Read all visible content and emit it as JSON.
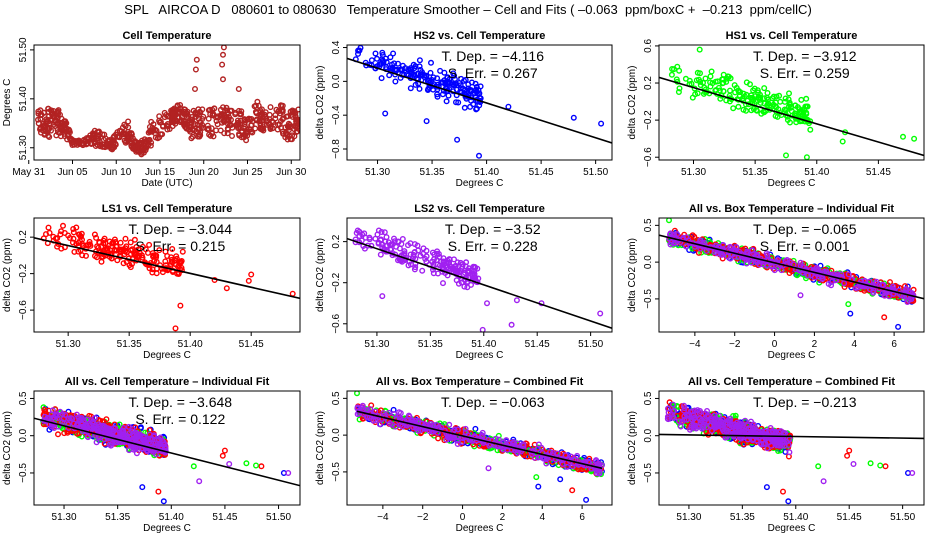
{
  "figure": {
    "title": "SPL   AIRCOA D   080601 to 080630   Temperature Smoother – Cell and Fits ( –0.063  ppm/boxC +  –0.213  ppm/cellC)",
    "colors": {
      "HS2": "#0000ff",
      "HS1": "#00ff00",
      "LS1": "#ff0000",
      "LS2": "#a020f0",
      "cell": "#b22222",
      "fit": "#000000"
    }
  },
  "chart_data": [
    {
      "id": "cell-temperature",
      "type": "scatter",
      "title": "Cell Temperature",
      "xlabel": "Date (UTC)",
      "ylabel": "Degrees C",
      "xlim": [
        0.6,
        31.0
      ],
      "ylim": [
        51.275,
        51.51
      ],
      "xticks": [
        0,
        5,
        10,
        15,
        20,
        25,
        30
      ],
      "xticklabels": [
        "May 31",
        "Jun 05",
        "Jun 10",
        "Jun 15",
        "Jun 20",
        "Jun 25",
        "Jun 30"
      ],
      "yticks": [
        51.3,
        51.4,
        51.5
      ],
      "yticklabels": [
        "51.30",
        "51.40",
        "51.50"
      ],
      "series": [
        {
          "name": "cell",
          "color": "#b22222",
          "profile_x": [
            1.0,
            1.5,
            2.0,
            2.5,
            3.0,
            3.5,
            4.0,
            4.5,
            5.0,
            6.0,
            7.0,
            7.5,
            8.0,
            9.0,
            9.5,
            10.0,
            11.0,
            11.5,
            12.0,
            12.5,
            13.0,
            13.5,
            14.0,
            15.0,
            16.0,
            16.5,
            17.0,
            17.5,
            18.0,
            18.5,
            19.0,
            19.5,
            20.0,
            21.0,
            22.0,
            22.5,
            23.0,
            24.0,
            24.5,
            25.0,
            26.0,
            26.5,
            27.0,
            28.0,
            29.0,
            29.5,
            30.0,
            30.5,
            31.0
          ],
          "profile_center": [
            51.36,
            51.345,
            51.355,
            51.35,
            51.355,
            51.35,
            51.34,
            51.33,
            51.31,
            51.31,
            51.315,
            51.32,
            51.32,
            51.31,
            51.305,
            51.32,
            51.33,
            51.335,
            51.305,
            51.3,
            51.3,
            51.305,
            51.33,
            51.345,
            51.355,
            51.365,
            51.37,
            51.37,
            51.36,
            51.345,
            51.355,
            51.35,
            51.355,
            51.35,
            51.36,
            51.355,
            51.355,
            51.35,
            51.345,
            51.335,
            51.37,
            51.36,
            51.355,
            51.365,
            51.36,
            51.345,
            51.345,
            51.35,
            51.36
          ],
          "profile_spread": [
            0.02,
            0.03,
            0.03,
            0.03,
            0.03,
            0.025,
            0.02,
            0.015,
            0.005,
            0.005,
            0.01,
            0.015,
            0.02,
            0.01,
            0.01,
            0.015,
            0.02,
            0.025,
            0.01,
            0.012,
            0.015,
            0.015,
            0.025,
            0.025,
            0.02,
            0.02,
            0.02,
            0.02,
            0.02,
            0.03,
            0.03,
            0.03,
            0.03,
            0.03,
            0.03,
            0.03,
            0.03,
            0.03,
            0.03,
            0.025,
            0.03,
            0.025,
            0.02,
            0.025,
            0.03,
            0.03,
            0.03,
            0.03,
            0.02
          ],
          "outliers": [
            [
              19.0,
              51.42
            ],
            [
              19.1,
              51.46
            ],
            [
              19.2,
              51.48
            ],
            [
              22.2,
              51.44
            ],
            [
              22.1,
              51.47
            ],
            [
              22.2,
              51.49
            ],
            [
              22.3,
              51.505
            ],
            [
              24.0,
              51.42
            ]
          ]
        }
      ]
    },
    {
      "id": "hs2-vs-cell",
      "type": "scatter",
      "title": "HS2 vs. Cell Temperature",
      "xlabel": "Degrees C",
      "ylabel": "delta CO2 (ppm)",
      "xlim": [
        51.272,
        51.515
      ],
      "ylim": [
        -0.93,
        0.43
      ],
      "xticks": [
        51.3,
        51.35,
        51.4,
        51.45,
        51.5
      ],
      "xticklabels": [
        "51.30",
        "51.35",
        "51.40",
        "51.45",
        "51.50"
      ],
      "yticks": [
        -0.8,
        -0.4,
        0.0,
        0.4
      ],
      "yticklabels": [
        "−0.8",
        "−0.4",
        "0.0",
        "0.4"
      ],
      "annotation": {
        "tdep_label": "T. Dep. =",
        "tdep": "−4.116",
        "serr_label": "S. Err. =",
        "serr": "0.267"
      },
      "fit": {
        "slope": -4.116,
        "x0": 51.35,
        "y0": -0.05
      },
      "series": [
        {
          "name": "HS2",
          "color": "#0000ff",
          "cloud": {
            "xmin": 51.28,
            "xmax": 51.395,
            "spread": 0.17
          },
          "outliers": [
            [
              51.48,
              -0.43
            ],
            [
              51.505,
              -0.5
            ],
            [
              51.42,
              -0.3
            ],
            [
              51.393,
              -0.88
            ],
            [
              51.373,
              -0.69
            ],
            [
              51.307,
              -0.38
            ],
            [
              51.345,
              -0.47
            ]
          ]
        }
      ]
    },
    {
      "id": "hs1-vs-cell",
      "type": "scatter",
      "title": "HS1 vs. Cell Temperature",
      "xlabel": "Degrees C",
      "ylabel": "delta CO2 (ppm)",
      "xlim": [
        51.272,
        51.487
      ],
      "ylim": [
        -0.63,
        0.61
      ],
      "xticks": [
        51.3,
        51.35,
        51.4,
        51.45
      ],
      "xticklabels": [
        "51.30",
        "51.35",
        "51.40",
        "51.45"
      ],
      "yticks": [
        -0.6,
        -0.2,
        0.2,
        0.6
      ],
      "yticklabels": [
        "−0.6",
        "−0.2",
        "0.2",
        "0.6"
      ],
      "annotation": {
        "tdep_label": "T. Dep. =",
        "tdep": "−3.912",
        "serr_label": "S. Err. =",
        "serr": "0.259"
      },
      "fit": {
        "slope": -3.912,
        "x0": 51.35,
        "y0": -0.045
      },
      "series": [
        {
          "name": "HS1",
          "color": "#00ff00",
          "cloud": {
            "xmin": 51.28,
            "xmax": 51.395,
            "spread": 0.17
          },
          "outliers": [
            [
              51.47,
              -0.38
            ],
            [
              51.479,
              -0.4
            ],
            [
              51.421,
              -0.43
            ],
            [
              51.423,
              -0.33
            ],
            [
              51.305,
              0.56
            ],
            [
              51.375,
              -0.58
            ],
            [
              51.392,
              -0.6
            ]
          ]
        }
      ]
    },
    {
      "id": "ls1-vs-cell",
      "type": "scatter",
      "title": "LS1 vs. Cell Temperature",
      "xlabel": "Degrees C",
      "ylabel": "delta CO2 (ppm)",
      "xlim": [
        51.272,
        51.49
      ],
      "ylim": [
        -0.84,
        0.41
      ],
      "xticks": [
        51.3,
        51.35,
        51.4,
        51.45
      ],
      "xticklabels": [
        "51.30",
        "51.35",
        "51.40",
        "51.45"
      ],
      "yticks": [
        -0.6,
        -0.2,
        0.2
      ],
      "yticklabels": [
        "−0.6",
        "−0.2",
        "0.2"
      ],
      "annotation": {
        "tdep_label": "T. Dep. =",
        "tdep": "−3.044",
        "serr_label": "S. Err. =",
        "serr": "0.215"
      },
      "fit": {
        "slope": -3.044,
        "x0": 51.35,
        "y0": -0.045
      },
      "series": [
        {
          "name": "LS1",
          "color": "#ff0000",
          "cloud": {
            "xmin": 51.28,
            "xmax": 51.395,
            "spread": 0.14
          },
          "outliers": [
            [
              51.484,
              -0.42
            ],
            [
              51.45,
              -0.21
            ],
            [
              51.448,
              -0.28
            ],
            [
              51.43,
              -0.36
            ],
            [
              51.42,
              -0.27
            ],
            [
              51.388,
              -0.8
            ],
            [
              51.392,
              -0.55
            ]
          ]
        }
      ]
    },
    {
      "id": "ls2-vs-cell",
      "type": "scatter",
      "title": "LS2 vs. Cell Temperature",
      "xlabel": "Degrees C",
      "ylabel": "delta CO2 (ppm)",
      "xlim": [
        51.272,
        51.52
      ],
      "ylim": [
        -0.68,
        0.43
      ],
      "xticks": [
        51.3,
        51.35,
        51.4,
        51.45,
        51.5
      ],
      "xticklabels": [
        "51.30",
        "51.35",
        "51.40",
        "51.45",
        "51.50"
      ],
      "yticks": [
        -0.6,
        -0.2,
        0.2
      ],
      "yticklabels": [
        "−0.6",
        "−0.2",
        "0.2"
      ],
      "annotation": {
        "tdep_label": "T. Dep. =",
        "tdep": "−3.52",
        "serr_label": "S. Err. =",
        "serr": "0.228"
      },
      "fit": {
        "slope": -3.52,
        "x0": 51.35,
        "y0": -0.045
      },
      "series": [
        {
          "name": "LS2",
          "color": "#a020f0",
          "cloud": {
            "xmin": 51.28,
            "xmax": 51.395,
            "spread": 0.15
          },
          "outliers": [
            [
              51.509,
              -0.5
            ],
            [
              51.454,
              -0.4
            ],
            [
              51.431,
              -0.37
            ],
            [
              51.426,
              -0.61
            ],
            [
              51.399,
              -0.66
            ],
            [
              51.403,
              -0.4
            ],
            [
              51.305,
              -0.33
            ]
          ]
        }
      ]
    },
    {
      "id": "all-vs-box-individual",
      "type": "scatter",
      "title": "All vs. Box Temperature – Individual Fit",
      "xlabel": "Degrees C",
      "ylabel": "delta CO2 (ppm)",
      "xlim": [
        -5.8,
        7.5
      ],
      "ylim": [
        -0.95,
        0.6
      ],
      "xticks": [
        -4,
        -2,
        0,
        2,
        4,
        6
      ],
      "xticklabels": [
        "−4",
        "−2",
        "0",
        "2",
        "4",
        "6"
      ],
      "yticks": [
        -0.5,
        0.0,
        0.5
      ],
      "yticklabels": [
        "−0.5",
        "0.0",
        "0.5"
      ],
      "annotation": {
        "tdep_label": "T. Dep. =",
        "tdep": "−0.065",
        "serr_label": "S. Err. =",
        "serr": "0.001"
      },
      "fit": {
        "slope": -0.065,
        "x0": 0,
        "y0": -0.01
      },
      "series": [
        {
          "name": "HS2",
          "color": "#0000ff"
        },
        {
          "name": "HS1",
          "color": "#00ff00"
        },
        {
          "name": "LS1",
          "color": "#ff0000"
        },
        {
          "name": "LS2",
          "color": "#a020f0"
        }
      ],
      "cloud": {
        "xmin": -5.3,
        "xmax": 7.0,
        "spread": 0.1
      },
      "outliers": [
        [
          6.2,
          -0.88,
          "HS2"
        ],
        [
          5.5,
          -0.75,
          "LS1"
        ],
        [
          3.8,
          -0.7,
          "HS2"
        ],
        [
          3.7,
          -0.57,
          "HS1"
        ],
        [
          -5.3,
          0.57,
          "HS1"
        ],
        [
          1.3,
          -0.45,
          "LS2"
        ]
      ]
    },
    {
      "id": "all-vs-cell-individual",
      "type": "scatter",
      "title": "All vs. Cell Temperature – Individual Fit",
      "xlabel": "Degrees C",
      "ylabel": "delta CO2 (ppm)",
      "xlim": [
        51.272,
        51.52
      ],
      "ylim": [
        -0.93,
        0.6
      ],
      "xticks": [
        51.3,
        51.35,
        51.4,
        51.45,
        51.5
      ],
      "xticklabels": [
        "51.30",
        "51.35",
        "51.40",
        "51.45",
        "51.50"
      ],
      "yticks": [
        -0.5,
        0.0,
        0.5
      ],
      "yticklabels": [
        "−0.5",
        "0.0",
        "0.5"
      ],
      "annotation": {
        "tdep_label": "T. Dep. =",
        "tdep": "−3.648",
        "serr_label": "S. Err. =",
        "serr": "0.122"
      },
      "fit": {
        "slope": -3.648,
        "x0": 51.35,
        "y0": -0.05
      },
      "series": [
        {
          "name": "HS2",
          "color": "#0000ff"
        },
        {
          "name": "HS1",
          "color": "#00ff00"
        },
        {
          "name": "LS1",
          "color": "#ff0000"
        },
        {
          "name": "LS2",
          "color": "#a020f0"
        }
      ],
      "cloud": {
        "xmin": 51.28,
        "xmax": 51.395,
        "spread": 0.15
      },
      "outliers": [
        [
          51.505,
          -0.5,
          "HS2"
        ],
        [
          51.509,
          -0.5,
          "LS2"
        ],
        [
          51.484,
          -0.41,
          "LS1"
        ],
        [
          51.479,
          -0.4,
          "HS1"
        ],
        [
          51.47,
          -0.37,
          "HS1"
        ],
        [
          51.45,
          -0.2,
          "LS1"
        ],
        [
          51.448,
          -0.27,
          "LS1"
        ],
        [
          51.454,
          -0.38,
          "LS2"
        ],
        [
          51.426,
          -0.61,
          "LS2"
        ],
        [
          51.421,
          -0.41,
          "HS1"
        ],
        [
          51.393,
          -0.88,
          "HS2"
        ],
        [
          51.373,
          -0.69,
          "HS2"
        ],
        [
          51.388,
          -0.75,
          "LS1"
        ]
      ]
    },
    {
      "id": "all-vs-box-combined",
      "type": "scatter",
      "title": "All vs. Box Temperature – Combined Fit",
      "xlabel": "Degrees C",
      "ylabel": "delta CO2 (ppm)",
      "xlim": [
        -5.8,
        7.5
      ],
      "ylim": [
        -0.95,
        0.6
      ],
      "xticks": [
        -4,
        -2,
        0,
        2,
        4,
        6
      ],
      "xticklabels": [
        "−4",
        "−2",
        "0",
        "2",
        "4",
        "6"
      ],
      "yticks": [
        -0.5,
        0.0,
        0.5
      ],
      "yticklabels": [
        "−0.5",
        "0.0",
        "0.5"
      ],
      "annotation": {
        "tdep_label": "T. Dep. =",
        "tdep": "−0.063"
      },
      "fit": {
        "slope": -0.063,
        "x0": 0,
        "y0": -0.01,
        "xrange": [
          -5.3,
          7.0
        ]
      },
      "series": [
        {
          "name": "HS2",
          "color": "#0000ff"
        },
        {
          "name": "HS1",
          "color": "#00ff00"
        },
        {
          "name": "LS1",
          "color": "#ff0000"
        },
        {
          "name": "LS2",
          "color": "#a020f0"
        }
      ],
      "cloud": {
        "xmin": -5.3,
        "xmax": 7.0,
        "spread": 0.1
      },
      "outliers": [
        [
          6.2,
          -0.88,
          "HS2"
        ],
        [
          5.5,
          -0.75,
          "LS1"
        ],
        [
          3.8,
          -0.7,
          "HS2"
        ],
        [
          3.7,
          -0.57,
          "HS1"
        ],
        [
          -5.3,
          0.57,
          "HS1"
        ],
        [
          1.3,
          -0.45,
          "LS2"
        ],
        [
          4.9,
          -0.6,
          "HS2"
        ]
      ]
    },
    {
      "id": "all-vs-cell-combined",
      "type": "scatter",
      "title": "All vs. Cell Temperature – Combined Fit",
      "xlabel": "Degrees C",
      "ylabel": "delta CO2 (ppm)",
      "xlim": [
        51.272,
        51.52
      ],
      "ylim": [
        -0.93,
        0.6
      ],
      "xticks": [
        51.3,
        51.35,
        51.4,
        51.45,
        51.5
      ],
      "xticklabels": [
        "51.30",
        "51.35",
        "51.40",
        "51.45",
        "51.50"
      ],
      "yticks": [
        -0.5,
        0.0,
        0.5
      ],
      "yticklabels": [
        "−0.5",
        "0.0",
        "0.5"
      ],
      "annotation": {
        "tdep_label": "T. Dep. =",
        "tdep": "−0.213"
      },
      "fit": {
        "slope": -0.213,
        "x0": 51.35,
        "y0": 0.0
      },
      "series": [
        {
          "name": "HS2",
          "color": "#0000ff"
        },
        {
          "name": "HS1",
          "color": "#00ff00"
        },
        {
          "name": "LS1",
          "color": "#ff0000"
        },
        {
          "name": "LS2",
          "color": "#a020f0"
        }
      ],
      "cloud": {
        "xmin": 51.28,
        "xmax": 51.395,
        "spread": 0.15,
        "trend": -3.6
      },
      "outliers": [
        [
          51.505,
          -0.5,
          "HS2"
        ],
        [
          51.509,
          -0.5,
          "LS2"
        ],
        [
          51.484,
          -0.41,
          "LS1"
        ],
        [
          51.479,
          -0.4,
          "HS1"
        ],
        [
          51.47,
          -0.37,
          "HS1"
        ],
        [
          51.45,
          -0.2,
          "LS1"
        ],
        [
          51.448,
          -0.27,
          "LS1"
        ],
        [
          51.454,
          -0.38,
          "LS2"
        ],
        [
          51.426,
          -0.61,
          "LS2"
        ],
        [
          51.421,
          -0.41,
          "HS1"
        ],
        [
          51.393,
          -0.88,
          "HS2"
        ],
        [
          51.373,
          -0.69,
          "HS2"
        ],
        [
          51.388,
          -0.75,
          "LS1"
        ]
      ]
    }
  ]
}
